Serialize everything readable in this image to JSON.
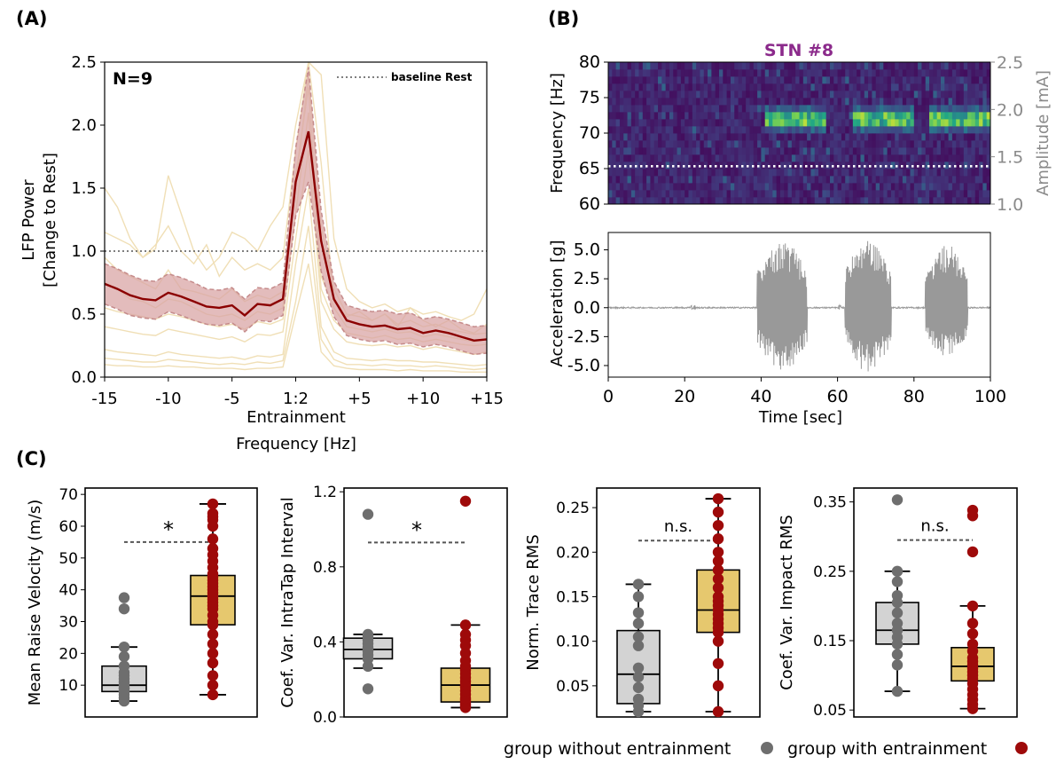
{
  "panels": {
    "A": {
      "label": "(A)"
    },
    "B": {
      "label": "(B)"
    },
    "C": {
      "label": "(C)"
    }
  },
  "colors": {
    "dark_red": "#8b0000",
    "band_fill": "#d9a5a5",
    "band_edge": "#c58b8b",
    "indiv_line": "#f0dfb6",
    "box_gray": "#d3d3d3",
    "box_gold": "#e6c86e",
    "dot_gray": "#6e6e6e",
    "dot_red": "#9e0a0a",
    "stn_title": "#8b2a8b",
    "accel_trace": "#999999",
    "dashed": "#555555"
  },
  "chart_data": [
    {
      "id": "A",
      "type": "line",
      "annotation": "N=9",
      "legend": {
        "label": "baseline Rest",
        "placement": "top-right"
      },
      "xlabel": "Entrainment\nFrequency [Hz]",
      "xlabel_lines": [
        "Entrainment",
        "Frequency [Hz]"
      ],
      "ylabel": "LFP Power [Change to Rest]",
      "ylabel_lines": [
        "LFP Power",
        "[Change to Rest]"
      ],
      "xlim": [
        -15,
        15
      ],
      "ylim": [
        0,
        2.5
      ],
      "xticks": [
        -15,
        -10,
        -5,
        0,
        5,
        10,
        15
      ],
      "xtick_labels": [
        "-15",
        "-10",
        "-5",
        "1:2",
        "+5",
        "+10",
        "+15"
      ],
      "yticks": [
        0,
        0.5,
        1.0,
        1.5,
        2.0,
        2.5
      ],
      "ytick_labels": [
        "0.0",
        "0.5",
        "1.0",
        "1.5",
        "2.0",
        "2.5"
      ],
      "baseline": 1.0,
      "x": [
        -15,
        -14,
        -13,
        -12,
        -11,
        -10,
        -9,
        -8,
        -7,
        -6,
        -5,
        -4,
        -3,
        -2,
        -1,
        0,
        1,
        2,
        3,
        4,
        5,
        6,
        7,
        8,
        9,
        10,
        11,
        12,
        13,
        14,
        15
      ],
      "mean": [
        0.74,
        0.7,
        0.65,
        0.62,
        0.61,
        0.67,
        0.64,
        0.6,
        0.56,
        0.55,
        0.57,
        0.49,
        0.58,
        0.57,
        0.62,
        1.55,
        1.95,
        1.08,
        0.62,
        0.45,
        0.42,
        0.4,
        0.41,
        0.38,
        0.39,
        0.35,
        0.37,
        0.35,
        0.32,
        0.29,
        0.3
      ],
      "upper": [
        0.9,
        0.86,
        0.81,
        0.77,
        0.76,
        0.82,
        0.79,
        0.75,
        0.7,
        0.69,
        0.71,
        0.62,
        0.71,
        0.7,
        0.75,
        1.82,
        2.46,
        1.32,
        0.76,
        0.57,
        0.54,
        0.52,
        0.53,
        0.5,
        0.51,
        0.46,
        0.48,
        0.46,
        0.43,
        0.4,
        0.41
      ],
      "lower": [
        0.58,
        0.54,
        0.49,
        0.47,
        0.46,
        0.52,
        0.49,
        0.45,
        0.42,
        0.41,
        0.43,
        0.36,
        0.45,
        0.44,
        0.49,
        1.28,
        1.55,
        0.84,
        0.48,
        0.33,
        0.3,
        0.28,
        0.29,
        0.26,
        0.27,
        0.24,
        0.26,
        0.24,
        0.21,
        0.18,
        0.19
      ],
      "individuals": [
        [
          1.5,
          1.35,
          1.1,
          0.95,
          1.05,
          1.2,
          1.0,
          0.9,
          1.05,
          0.8,
          0.95,
          0.85,
          0.9,
          0.85,
          0.95,
          1.8,
          2.5,
          2.4,
          1.1,
          0.7,
          0.6,
          0.55,
          0.58,
          0.52,
          0.55,
          0.5,
          0.52,
          0.48,
          0.45,
          0.5,
          0.7
        ],
        [
          1.15,
          1.1,
          1.05,
          0.95,
          1.02,
          1.6,
          1.3,
          1.0,
          0.85,
          0.95,
          1.15,
          1.1,
          1.0,
          1.2,
          1.35,
          2.0,
          2.5,
          1.7,
          0.6,
          0.48,
          0.52,
          0.45,
          0.5,
          0.4,
          0.55,
          0.45,
          0.4,
          0.45,
          0.38,
          0.35,
          0.42
        ],
        [
          0.95,
          0.85,
          0.8,
          0.75,
          0.7,
          0.85,
          0.7,
          0.68,
          0.65,
          0.62,
          0.7,
          0.6,
          0.65,
          0.62,
          0.68,
          1.5,
          2.4,
          1.2,
          0.7,
          0.5,
          0.48,
          0.45,
          0.5,
          0.42,
          0.45,
          0.4,
          0.42,
          0.38,
          0.36,
          0.34,
          0.35
        ],
        [
          0.75,
          0.7,
          0.62,
          0.6,
          0.55,
          0.62,
          0.6,
          0.55,
          0.5,
          0.48,
          0.5,
          0.45,
          0.52,
          0.5,
          0.55,
          1.6,
          2.3,
          0.8,
          0.55,
          0.4,
          0.38,
          0.36,
          0.38,
          0.35,
          0.36,
          0.32,
          0.34,
          0.32,
          0.3,
          0.28,
          0.3
        ],
        [
          0.55,
          0.52,
          0.5,
          0.48,
          0.46,
          0.5,
          0.48,
          0.45,
          0.42,
          0.4,
          0.42,
          0.38,
          0.44,
          0.42,
          0.46,
          1.3,
          2.1,
          0.7,
          0.45,
          0.35,
          0.33,
          0.31,
          0.33,
          0.3,
          0.31,
          0.28,
          0.3,
          0.28,
          0.26,
          0.25,
          0.26
        ],
        [
          0.4,
          0.38,
          0.36,
          0.34,
          0.33,
          0.38,
          0.36,
          0.34,
          0.32,
          0.3,
          0.32,
          0.28,
          0.34,
          0.33,
          0.36,
          1.1,
          1.8,
          0.6,
          0.38,
          0.28,
          0.26,
          0.25,
          0.26,
          0.24,
          0.25,
          0.22,
          0.24,
          0.22,
          0.2,
          0.18,
          0.2
        ],
        [
          0.22,
          0.2,
          0.19,
          0.18,
          0.17,
          0.2,
          0.18,
          0.17,
          0.16,
          0.15,
          0.16,
          0.14,
          0.17,
          0.16,
          0.18,
          0.9,
          1.5,
          0.4,
          0.2,
          0.15,
          0.14,
          0.13,
          0.14,
          0.13,
          0.13,
          0.12,
          0.12,
          0.11,
          0.1,
          0.09,
          0.1
        ],
        [
          0.15,
          0.14,
          0.13,
          0.12,
          0.12,
          0.14,
          0.13,
          0.12,
          0.11,
          0.1,
          0.11,
          0.1,
          0.12,
          0.11,
          0.13,
          0.6,
          1.2,
          0.3,
          0.14,
          0.1,
          0.1,
          0.09,
          0.1,
          0.09,
          0.09,
          0.08,
          0.09,
          0.08,
          0.07,
          0.06,
          0.07
        ],
        [
          0.1,
          0.09,
          0.09,
          0.08,
          0.08,
          0.09,
          0.08,
          0.08,
          0.07,
          0.07,
          0.07,
          0.06,
          0.07,
          0.07,
          0.08,
          0.5,
          0.9,
          0.2,
          0.09,
          0.07,
          0.06,
          0.06,
          0.06,
          0.05,
          0.06,
          0.05,
          0.05,
          0.05,
          0.04,
          0.04,
          0.04
        ]
      ]
    },
    {
      "id": "B-spectrogram",
      "type": "heatmap",
      "title": "STN #8",
      "xlim": [
        0,
        100
      ],
      "ylim": [
        60,
        80
      ],
      "yticks": [
        60,
        65,
        70,
        75,
        80
      ],
      "ytick_labels": [
        "60",
        "65",
        "70",
        "75",
        "80"
      ],
      "ylabel": "Frequency [Hz]",
      "y2lim": [
        1.0,
        2.5
      ],
      "y2ticks": [
        1.0,
        1.5,
        2.0,
        2.5
      ],
      "y2tick_labels": [
        "1.0",
        "1.5",
        "2.0",
        "2.5"
      ],
      "y2label": "Amplitude [mA]",
      "stim_amplitude": 1.4,
      "bursts": [
        {
          "start": 41,
          "end": 57,
          "freq": 72.0
        },
        {
          "start": 64,
          "end": 80,
          "freq": 72.0
        },
        {
          "start": 84,
          "end": 100,
          "freq": 72.0
        }
      ]
    },
    {
      "id": "B-acceleration",
      "type": "line",
      "xlabel": "Time [sec]",
      "ylabel": "Acceleration [g]",
      "xlim": [
        0,
        100
      ],
      "ylim": [
        -6,
        6.5
      ],
      "xticks": [
        0,
        20,
        40,
        60,
        80,
        100
      ],
      "xtick_labels": [
        "0",
        "20",
        "40",
        "60",
        "80",
        "100"
      ],
      "yticks": [
        -5.0,
        -2.5,
        0.0,
        2.5,
        5.0
      ],
      "ytick_labels": [
        "-5.0",
        "-2.5",
        "0.0",
        "2.5",
        "5.0"
      ],
      "tremor_bursts": [
        {
          "start": 39,
          "end": 52,
          "amp_pos": 5.8,
          "amp_neg": -5.5
        },
        {
          "start": 62,
          "end": 74,
          "amp_pos": 5.9,
          "amp_neg": -5.6
        },
        {
          "start": 83,
          "end": 94,
          "amp_pos": 5.5,
          "amp_neg": -4.2
        }
      ]
    },
    {
      "id": "C1",
      "type": "box",
      "ylabel": "Mean Raise Velocity (m/s)",
      "ylim": [
        0,
        72
      ],
      "yticks": [
        10,
        20,
        30,
        40,
        50,
        60,
        70
      ],
      "ytick_labels": [
        "10",
        "20",
        "30",
        "40",
        "50",
        "60",
        "70"
      ],
      "significance": "*",
      "bracket_y": 55,
      "groups": [
        {
          "name": "group without entrainment",
          "q1": 8,
          "median": 10,
          "q3": 16,
          "whislo": 5,
          "whishi": 22,
          "points": [
            5,
            6,
            7,
            8,
            8,
            9,
            9,
            10,
            11,
            12,
            13,
            14,
            16,
            19,
            22,
            34,
            37.5
          ]
        },
        {
          "name": "group with entrainment",
          "q1": 29,
          "median": 38,
          "q3": 44.5,
          "whislo": 7,
          "whishi": 67,
          "points": [
            7,
            10,
            13,
            17,
            20,
            23,
            26,
            29,
            30,
            32,
            34,
            35,
            36,
            37,
            38,
            38,
            39,
            40,
            41,
            42,
            43,
            44,
            45,
            47,
            49,
            51,
            53,
            56,
            60,
            62,
            63,
            64,
            67
          ]
        }
      ]
    },
    {
      "id": "C2",
      "type": "box",
      "ylabel": "Coef. Var. IntraTap Interval",
      "ylim": [
        0,
        1.22
      ],
      "yticks": [
        0.0,
        0.4,
        0.8,
        1.2
      ],
      "ytick_labels": [
        "0.0",
        "0.4",
        "0.8",
        "1.2"
      ],
      "significance": "*",
      "bracket_y": 0.93,
      "groups": [
        {
          "name": "group without entrainment",
          "q1": 0.31,
          "median": 0.36,
          "q3": 0.42,
          "whislo": 0.26,
          "whishi": 0.44,
          "points": [
            0.15,
            0.27,
            0.31,
            0.33,
            0.35,
            0.36,
            0.37,
            0.39,
            0.41,
            0.43,
            0.44,
            1.08
          ]
        },
        {
          "name": "group with entrainment",
          "q1": 0.08,
          "median": 0.17,
          "q3": 0.26,
          "whislo": 0.05,
          "whishi": 0.49,
          "points": [
            0.05,
            0.06,
            0.07,
            0.08,
            0.09,
            0.1,
            0.12,
            0.14,
            0.16,
            0.17,
            0.19,
            0.21,
            0.23,
            0.25,
            0.27,
            0.3,
            0.34,
            0.38,
            0.41,
            0.44,
            0.49,
            1.15
          ]
        }
      ]
    },
    {
      "id": "C3",
      "type": "box",
      "ylabel": "Norm. Trace RMS",
      "ylim": [
        0.015,
        0.272
      ],
      "yticks": [
        0.05,
        0.1,
        0.15,
        0.2,
        0.25
      ],
      "ytick_labels": [
        "0.05",
        "0.10",
        "0.15",
        "0.20",
        "0.25"
      ],
      "significance": "n.s.",
      "bracket_y": 0.213,
      "groups": [
        {
          "name": "group without entrainment",
          "q1": 0.03,
          "median": 0.063,
          "q3": 0.112,
          "whislo": 0.021,
          "whishi": 0.164,
          "points": [
            0.021,
            0.028,
            0.035,
            0.048,
            0.06,
            0.07,
            0.095,
            0.105,
            0.12,
            0.132,
            0.15,
            0.164
          ]
        },
        {
          "name": "group with entrainment",
          "q1": 0.11,
          "median": 0.135,
          "q3": 0.18,
          "whislo": 0.021,
          "whishi": 0.26,
          "points": [
            0.021,
            0.05,
            0.075,
            0.1,
            0.11,
            0.115,
            0.12,
            0.125,
            0.13,
            0.135,
            0.14,
            0.145,
            0.15,
            0.16,
            0.17,
            0.18,
            0.19,
            0.2,
            0.215,
            0.23,
            0.245,
            0.26
          ]
        }
      ]
    },
    {
      "id": "C4",
      "type": "box",
      "ylabel": "Coef. Var. Impact RMS",
      "ylim": [
        0.04,
        0.37
      ],
      "yticks": [
        0.05,
        0.15,
        0.25,
        0.35
      ],
      "ytick_labels": [
        "0.05",
        "0.15",
        "0.25",
        "0.35"
      ],
      "significance": "n.s.",
      "bracket_y": 0.295,
      "groups": [
        {
          "name": "group without entrainment",
          "q1": 0.145,
          "median": 0.165,
          "q3": 0.205,
          "whislo": 0.077,
          "whishi": 0.25,
          "points": [
            0.077,
            0.115,
            0.13,
            0.145,
            0.155,
            0.165,
            0.175,
            0.19,
            0.205,
            0.215,
            0.235,
            0.25,
            0.353
          ]
        },
        {
          "name": "group with entrainment",
          "q1": 0.092,
          "median": 0.113,
          "q3": 0.14,
          "whislo": 0.052,
          "whishi": 0.2,
          "points": [
            0.052,
            0.058,
            0.065,
            0.072,
            0.08,
            0.088,
            0.095,
            0.1,
            0.105,
            0.11,
            0.115,
            0.12,
            0.125,
            0.135,
            0.145,
            0.16,
            0.175,
            0.2,
            0.278,
            0.33,
            0.338
          ]
        }
      ]
    }
  ],
  "legend_C": [
    {
      "label": "group without entrainment",
      "color": "#6e6e6e"
    },
    {
      "label": "group with entrainment",
      "color": "#9e0a0a"
    }
  ]
}
